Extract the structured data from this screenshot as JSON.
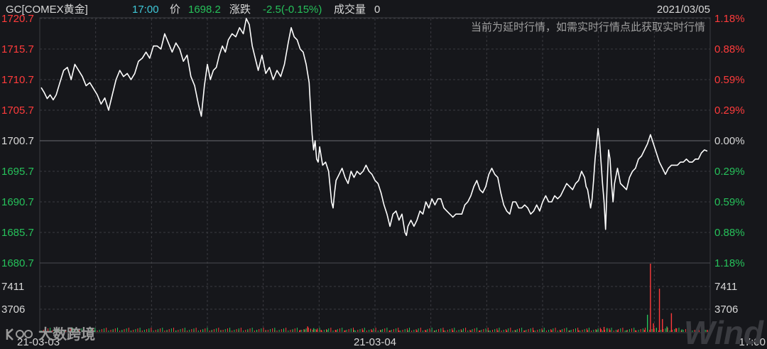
{
  "header": {
    "symbol": "GC[COMEX黄金]",
    "time": "17:00",
    "price_label": "价",
    "price": "1698.2",
    "change_label": "涨跌",
    "change": "-2.5(-0.15%)",
    "volume_label": "成交量",
    "volume": "0",
    "date": "2021/03/05"
  },
  "notice": "当前为延时行情，如需实时行情点此获取实时行情",
  "watermark": {
    "left": "大数跨境",
    "right": "Wind"
  },
  "colors": {
    "up": "#ff3b3b",
    "down": "#26c15a",
    "neutral": "#d8d8d8",
    "accent": "#3fc8d8",
    "line": "#ffffff",
    "grid": "#3a3b40"
  },
  "chart_data": {
    "type": "line",
    "title": "GC[COMEX黄金]",
    "y_ticks": [
      "1720.7",
      "1715.7",
      "1710.7",
      "1705.7",
      "1700.7",
      "1695.7",
      "1690.7",
      "1685.7",
      "1680.7"
    ],
    "y_pct_ticks": [
      "1.18%",
      "0.88%",
      "0.59%",
      "0.29%",
      "0.00%",
      "0.29%",
      "0.59%",
      "0.88%",
      "1.18%"
    ],
    "ylim": [
      1680.7,
      1720.7
    ],
    "reference_price": 1700.7,
    "x_ticks": [
      "21-03-03",
      "21-03-04",
      "17:00"
    ],
    "volume_ticks": [
      "7411",
      "3706"
    ],
    "volume_max": 11117,
    "price_series": [
      [
        0,
        1709.4
      ],
      [
        4,
        1708.6
      ],
      [
        8,
        1707.6
      ],
      [
        12,
        1708.2
      ],
      [
        16,
        1707.4
      ],
      [
        20,
        1708.2
      ],
      [
        25,
        1710.2
      ],
      [
        30,
        1712.2
      ],
      [
        35,
        1712.7
      ],
      [
        40,
        1710.7
      ],
      [
        45,
        1713.2
      ],
      [
        50,
        1712.2
      ],
      [
        55,
        1711.2
      ],
      [
        60,
        1709.7
      ],
      [
        65,
        1710.2
      ],
      [
        70,
        1709.2
      ],
      [
        75,
        1708.2
      ],
      [
        80,
        1706.7
      ],
      [
        85,
        1707.7
      ],
      [
        90,
        1705.7
      ],
      [
        95,
        1708.2
      ],
      [
        100,
        1710.7
      ],
      [
        105,
        1712.2
      ],
      [
        110,
        1711.2
      ],
      [
        115,
        1711.7
      ],
      [
        120,
        1710.7
      ],
      [
        125,
        1711.7
      ],
      [
        130,
        1713.7
      ],
      [
        135,
        1714.2
      ],
      [
        140,
        1715.2
      ],
      [
        145,
        1714.2
      ],
      [
        150,
        1716.2
      ],
      [
        155,
        1716.2
      ],
      [
        160,
        1715.7
      ],
      [
        165,
        1718.2
      ],
      [
        170,
        1716.7
      ],
      [
        175,
        1715.2
      ],
      [
        180,
        1716.7
      ],
      [
        185,
        1715.7
      ],
      [
        190,
        1713.7
      ],
      [
        195,
        1714.7
      ],
      [
        200,
        1711.2
      ],
      [
        205,
        1709.7
      ],
      [
        210,
        1706.7
      ],
      [
        214,
        1704.7
      ],
      [
        218,
        1709.7
      ],
      [
        222,
        1713.2
      ],
      [
        226,
        1710.7
      ],
      [
        230,
        1712.2
      ],
      [
        234,
        1712.7
      ],
      [
        238,
        1714.7
      ],
      [
        242,
        1716.2
      ],
      [
        246,
        1715.2
      ],
      [
        250,
        1717.2
      ],
      [
        255,
        1718.2
      ],
      [
        260,
        1717.7
      ],
      [
        265,
        1719.2
      ],
      [
        270,
        1718.2
      ],
      [
        274,
        1720.7
      ],
      [
        278,
        1719.7
      ],
      [
        282,
        1716.2
      ],
      [
        286,
        1714.2
      ],
      [
        290,
        1712.2
      ],
      [
        295,
        1714.7
      ],
      [
        300,
        1711.7
      ],
      [
        305,
        1712.7
      ],
      [
        310,
        1710.7
      ],
      [
        315,
        1712.2
      ],
      [
        320,
        1711.2
      ],
      [
        325,
        1713.2
      ],
      [
        330,
        1716.7
      ],
      [
        334,
        1719.2
      ],
      [
        338,
        1717.7
      ],
      [
        342,
        1717.2
      ],
      [
        346,
        1715.7
      ],
      [
        350,
        1715.2
      ],
      [
        354,
        1713.2
      ],
      [
        358,
        1710.2
      ],
      [
        360,
        1705.7
      ],
      [
        362,
        1701.7
      ],
      [
        364,
        1699.2
      ],
      [
        366,
        1700.7
      ],
      [
        368,
        1697.7
      ],
      [
        370,
        1697.2
      ],
      [
        372,
        1699.7
      ],
      [
        376,
        1696.7
      ],
      [
        380,
        1697.2
      ],
      [
        384,
        1695.7
      ],
      [
        386,
        1693.2
      ],
      [
        388,
        1690.7
      ],
      [
        390,
        1689.7
      ],
      [
        392,
        1692.2
      ],
      [
        394,
        1694.2
      ],
      [
        398,
        1695.2
      ],
      [
        402,
        1696.2
      ],
      [
        406,
        1694.7
      ],
      [
        410,
        1693.7
      ],
      [
        414,
        1695.7
      ],
      [
        418,
        1694.7
      ],
      [
        422,
        1695.7
      ],
      [
        426,
        1695.2
      ],
      [
        430,
        1695.7
      ],
      [
        434,
        1696.7
      ],
      [
        438,
        1695.7
      ],
      [
        442,
        1695.2
      ],
      [
        446,
        1694.2
      ],
      [
        450,
        1693.7
      ],
      [
        454,
        1692.2
      ],
      [
        458,
        1690.2
      ],
      [
        462,
        1688.7
      ],
      [
        466,
        1686.7
      ],
      [
        470,
        1688.7
      ],
      [
        474,
        1689.2
      ],
      [
        478,
        1687.7
      ],
      [
        482,
        1688.7
      ],
      [
        486,
        1685.7
      ],
      [
        488,
        1685.2
      ],
      [
        490,
        1686.7
      ],
      [
        494,
        1687.7
      ],
      [
        498,
        1686.7
      ],
      [
        502,
        1687.7
      ],
      [
        506,
        1689.2
      ],
      [
        510,
        1688.7
      ],
      [
        514,
        1690.7
      ],
      [
        518,
        1689.7
      ],
      [
        522,
        1691.2
      ],
      [
        526,
        1690.2
      ],
      [
        530,
        1691.2
      ],
      [
        534,
        1691.2
      ],
      [
        538,
        1689.7
      ],
      [
        542,
        1689.2
      ],
      [
        546,
        1688.7
      ],
      [
        550,
        1688.2
      ],
      [
        554,
        1688.7
      ],
      [
        558,
        1688.7
      ],
      [
        562,
        1688.7
      ],
      [
        566,
        1690.2
      ],
      [
        570,
        1690.7
      ],
      [
        574,
        1691.7
      ],
      [
        578,
        1693.2
      ],
      [
        582,
        1694.2
      ],
      [
        586,
        1692.7
      ],
      [
        590,
        1692.2
      ],
      [
        594,
        1693.2
      ],
      [
        598,
        1695.2
      ],
      [
        602,
        1696.2
      ],
      [
        606,
        1695.2
      ],
      [
        610,
        1694.7
      ],
      [
        614,
        1692.2
      ],
      [
        618,
        1690.2
      ],
      [
        622,
        1689.2
      ],
      [
        626,
        1688.7
      ],
      [
        630,
        1690.7
      ],
      [
        634,
        1690.7
      ],
      [
        638,
        1689.7
      ],
      [
        642,
        1689.7
      ],
      [
        646,
        1690.2
      ],
      [
        650,
        1689.7
      ],
      [
        654,
        1688.7
      ],
      [
        658,
        1689.2
      ],
      [
        662,
        1690.2
      ],
      [
        666,
        1689.2
      ],
      [
        670,
        1690.7
      ],
      [
        674,
        1691.7
      ],
      [
        678,
        1690.7
      ],
      [
        682,
        1690.7
      ],
      [
        686,
        1691.7
      ],
      [
        690,
        1691.2
      ],
      [
        694,
        1691.7
      ],
      [
        698,
        1692.7
      ],
      [
        702,
        1693.7
      ],
      [
        706,
        1693.2
      ],
      [
        710,
        1692.7
      ],
      [
        714,
        1693.7
      ],
      [
        718,
        1694.2
      ],
      [
        722,
        1695.7
      ],
      [
        726,
        1694.7
      ],
      [
        728,
        1693.2
      ],
      [
        730,
        1692.7
      ],
      [
        732,
        1691.2
      ],
      [
        734,
        1689.7
      ],
      [
        736,
        1691.2
      ],
      [
        738,
        1694.2
      ],
      [
        740,
        1697.7
      ],
      [
        742,
        1700.2
      ],
      [
        744,
        1702.7
      ],
      [
        746,
        1700.7
      ],
      [
        748,
        1697.2
      ],
      [
        750,
        1693.7
      ],
      [
        752,
        1690.7
      ],
      [
        754,
        1686.2
      ],
      [
        756,
        1693.2
      ],
      [
        758,
        1699.2
      ],
      [
        760,
        1697.7
      ],
      [
        762,
        1693.7
      ],
      [
        764,
        1690.7
      ],
      [
        766,
        1693.7
      ],
      [
        770,
        1696.2
      ],
      [
        774,
        1693.7
      ],
      [
        778,
        1693.2
      ],
      [
        782,
        1692.7
      ],
      [
        786,
        1694.7
      ],
      [
        790,
        1695.7
      ],
      [
        794,
        1696.2
      ],
      [
        798,
        1697.7
      ],
      [
        802,
        1698.2
      ],
      [
        806,
        1699.2
      ],
      [
        810,
        1700.2
      ],
      [
        814,
        1701.7
      ],
      [
        818,
        1700.2
      ],
      [
        822,
        1698.7
      ],
      [
        826,
        1697.2
      ],
      [
        830,
        1696.2
      ],
      [
        834,
        1695.2
      ],
      [
        838,
        1696.2
      ],
      [
        842,
        1696.7
      ],
      [
        846,
        1696.7
      ],
      [
        850,
        1696.7
      ],
      [
        854,
        1697.2
      ],
      [
        858,
        1697.2
      ],
      [
        862,
        1697.7
      ],
      [
        866,
        1697.2
      ],
      [
        870,
        1697.2
      ],
      [
        874,
        1697.7
      ],
      [
        878,
        1697.7
      ],
      [
        882,
        1698.7
      ],
      [
        886,
        1699.2
      ],
      [
        890,
        1699.0
      ]
    ],
    "volume_bars": [
      [
        0,
        210
      ],
      [
        12,
        180
      ],
      [
        24,
        160
      ],
      [
        36,
        190
      ],
      [
        48,
        230
      ],
      [
        60,
        170
      ],
      [
        72,
        200
      ],
      [
        84,
        150
      ],
      [
        96,
        260
      ],
      [
        108,
        190
      ],
      [
        120,
        170
      ],
      [
        132,
        210
      ],
      [
        144,
        180
      ],
      [
        156,
        190
      ],
      [
        168,
        210
      ],
      [
        180,
        240
      ],
      [
        192,
        200
      ],
      [
        204,
        260
      ],
      [
        216,
        220
      ],
      [
        228,
        240
      ],
      [
        240,
        300
      ],
      [
        252,
        260
      ],
      [
        264,
        280
      ],
      [
        276,
        240
      ],
      [
        288,
        280
      ],
      [
        300,
        310
      ],
      [
        312,
        320
      ],
      [
        324,
        300
      ],
      [
        336,
        260
      ],
      [
        346,
        340
      ],
      [
        352,
        390
      ],
      [
        356,
        900
      ],
      [
        360,
        520
      ],
      [
        364,
        610
      ],
      [
        368,
        380
      ],
      [
        374,
        340
      ],
      [
        382,
        330
      ],
      [
        394,
        300
      ],
      [
        406,
        260
      ],
      [
        418,
        310
      ],
      [
        430,
        280
      ],
      [
        442,
        260
      ],
      [
        454,
        300
      ],
      [
        466,
        250
      ],
      [
        478,
        230
      ],
      [
        490,
        250
      ],
      [
        502,
        240
      ],
      [
        514,
        250
      ],
      [
        526,
        230
      ],
      [
        538,
        260
      ],
      [
        550,
        250
      ],
      [
        562,
        240
      ],
      [
        574,
        210
      ],
      [
        586,
        230
      ],
      [
        598,
        220
      ],
      [
        610,
        240
      ],
      [
        622,
        230
      ],
      [
        634,
        250
      ],
      [
        646,
        240
      ],
      [
        658,
        250
      ],
      [
        670,
        260
      ],
      [
        682,
        280
      ],
      [
        694,
        260
      ],
      [
        706,
        250
      ],
      [
        718,
        270
      ],
      [
        730,
        280
      ],
      [
        742,
        330
      ],
      [
        748,
        450
      ],
      [
        752,
        820
      ],
      [
        756,
        620
      ],
      [
        760,
        310
      ],
      [
        770,
        280
      ],
      [
        782,
        260
      ],
      [
        794,
        280
      ],
      [
        806,
        330
      ],
      [
        810,
        2800
      ],
      [
        814,
        11117
      ],
      [
        818,
        1400
      ],
      [
        822,
        620
      ],
      [
        826,
        7050
      ],
      [
        830,
        2100
      ],
      [
        836,
        880
      ],
      [
        842,
        3050
      ],
      [
        848,
        610
      ],
      [
        856,
        420
      ],
      [
        866,
        400
      ],
      [
        876,
        380
      ],
      [
        886,
        360
      ],
      [
        890,
        330
      ]
    ],
    "grid": true
  }
}
